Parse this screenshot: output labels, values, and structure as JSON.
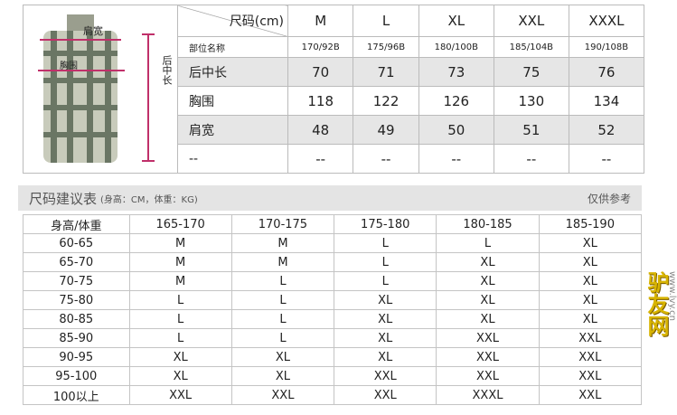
{
  "size_chart": {
    "corner_top": "尺码(cm)",
    "corner_bottom": "部位名称",
    "sizes": [
      "M",
      "L",
      "XL",
      "XXL",
      "XXXL"
    ],
    "specs": [
      "170/92B",
      "175/96B",
      "180/100B",
      "185/104B",
      "190/108B"
    ],
    "rows": [
      {
        "label": "后中长",
        "values": [
          "70",
          "71",
          "73",
          "75",
          "76"
        ]
      },
      {
        "label": "胸围",
        "values": [
          "118",
          "122",
          "126",
          "130",
          "134"
        ]
      },
      {
        "label": "肩宽",
        "values": [
          "48",
          "49",
          "50",
          "51",
          "52"
        ]
      },
      {
        "label": "--",
        "values": [
          "--",
          "--",
          "--",
          "--",
          "--"
        ]
      }
    ],
    "diagram": {
      "shoulder": "肩宽",
      "chest": "胸围",
      "length": "后中长",
      "marker_color": "#c0306a"
    }
  },
  "recommend": {
    "title": "尺码建议表",
    "subtitle": "(身高：CM，体重：KG)",
    "note": "仅供参考",
    "header": [
      "身高/体重",
      "165-170",
      "170-175",
      "175-180",
      "180-185",
      "185-190"
    ],
    "rows": [
      [
        "60-65",
        "M",
        "M",
        "L",
        "L",
        "XL"
      ],
      [
        "65-70",
        "M",
        "M",
        "L",
        "XL",
        "XL"
      ],
      [
        "70-75",
        "M",
        "L",
        "L",
        "XL",
        "XL"
      ],
      [
        "75-80",
        "L",
        "L",
        "XL",
        "XL",
        "XL"
      ],
      [
        "80-85",
        "L",
        "L",
        "XL",
        "XL",
        "XL"
      ],
      [
        "85-90",
        "L",
        "L",
        "XL",
        "XXL",
        "XXL"
      ],
      [
        "90-95",
        "XL",
        "XL",
        "XL",
        "XXL",
        "XXL"
      ],
      [
        "95-100",
        "XL",
        "XL",
        "XXL",
        "XXL",
        "XXL"
      ],
      [
        "100以上",
        "XXL",
        "XXL",
        "XXL",
        "XXXL",
        "XXL"
      ]
    ]
  },
  "watermark": {
    "logo": "驴友网",
    "url": "www.lvy.cn"
  }
}
